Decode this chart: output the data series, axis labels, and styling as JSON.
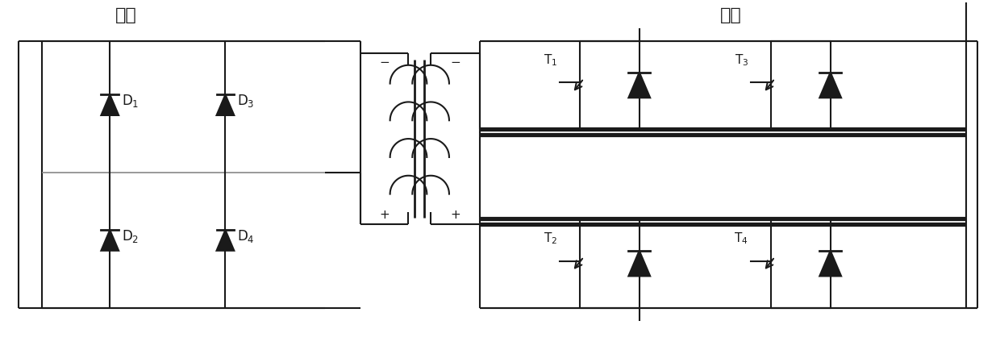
{
  "title_left": "高压",
  "title_right": "低压",
  "bg_color": "#ffffff",
  "line_color": "#1a1a1a",
  "line_width": 1.5,
  "fig_width": 12.4,
  "fig_height": 4.34,
  "dpi": 100
}
